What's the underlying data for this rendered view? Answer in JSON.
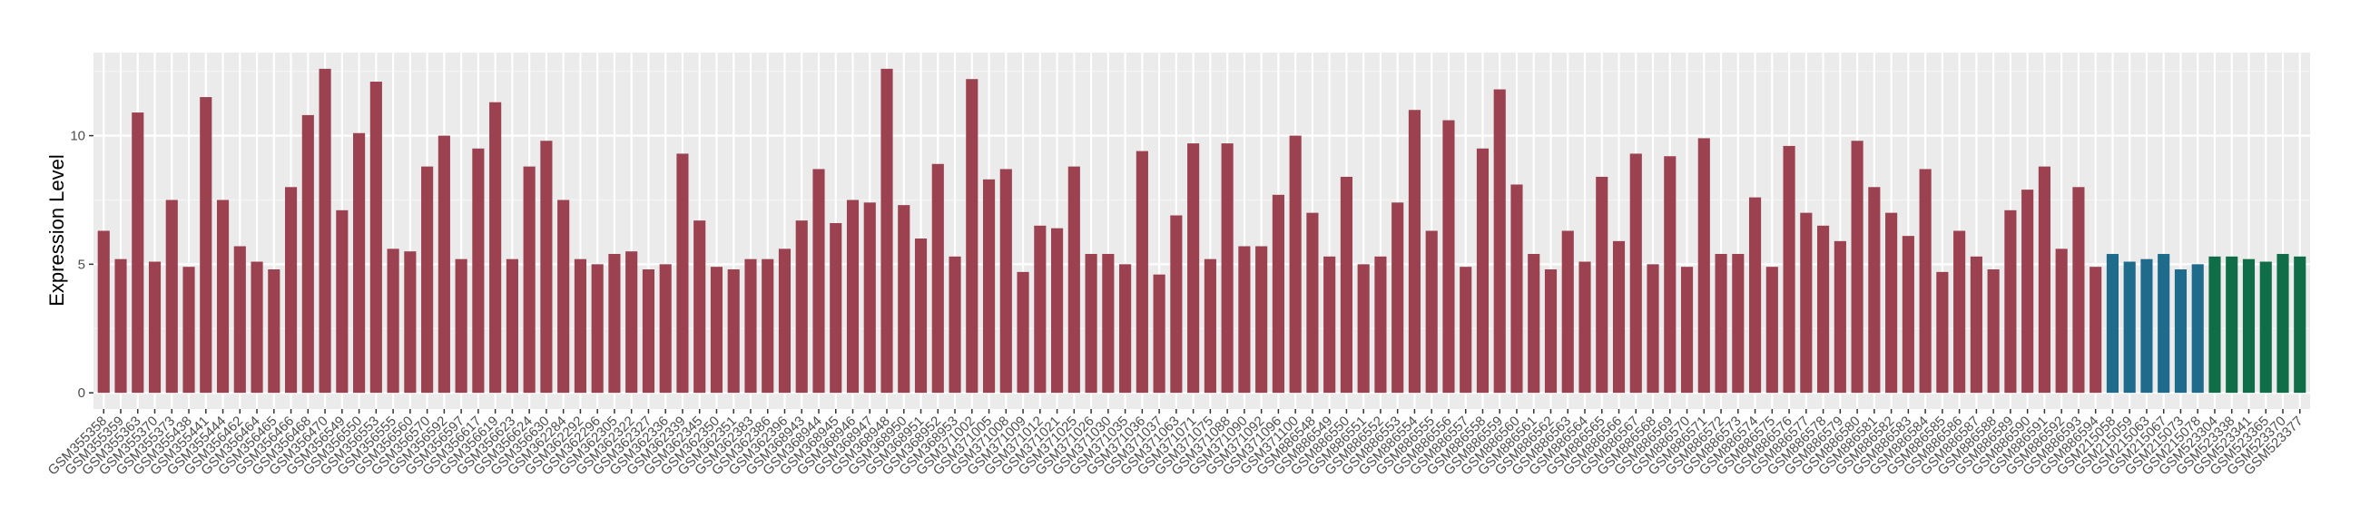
{
  "chart_data": {
    "type": "bar",
    "y_label": "Expression Level",
    "categories": [
      "GSM355358",
      "GSM355359",
      "GSM355363",
      "GSM355370",
      "GSM355373",
      "GSM355438",
      "GSM355441",
      "GSM355444",
      "GSM356462",
      "GSM356464",
      "GSM356465",
      "GSM356466",
      "GSM356468",
      "GSM356470",
      "GSM356549",
      "GSM356550",
      "GSM356553",
      "GSM356555",
      "GSM356560",
      "GSM356570",
      "GSM356592",
      "GSM356597",
      "GSM356617",
      "GSM356619",
      "GSM356623",
      "GSM356624",
      "GSM356630",
      "GSM362284",
      "GSM362292",
      "GSM362296",
      "GSM362305",
      "GSM362322",
      "GSM362327",
      "GSM362336",
      "GSM362339",
      "GSM362345",
      "GSM362350",
      "GSM362351",
      "GSM362383",
      "GSM362386",
      "GSM362396",
      "GSM368943",
      "GSM368944",
      "GSM368945",
      "GSM368946",
      "GSM368947",
      "GSM368948",
      "GSM368950",
      "GSM368951",
      "GSM368952",
      "GSM368953",
      "GSM371002",
      "GSM371005",
      "GSM371008",
      "GSM371009",
      "GSM371012",
      "GSM371021",
      "GSM371025",
      "GSM371026",
      "GSM371030",
      "GSM371035",
      "GSM371036",
      "GSM371037",
      "GSM371063",
      "GSM371071",
      "GSM371075",
      "GSM371088",
      "GSM371090",
      "GSM371092",
      "GSM371096",
      "GSM371100",
      "GSM886548",
      "GSM886549",
      "GSM886550",
      "GSM886551",
      "GSM886552",
      "GSM886553",
      "GSM886554",
      "GSM886555",
      "GSM886556",
      "GSM886557",
      "GSM886558",
      "GSM886559",
      "GSM886560",
      "GSM886561",
      "GSM886562",
      "GSM886563",
      "GSM886564",
      "GSM886565",
      "GSM886566",
      "GSM886567",
      "GSM886568",
      "GSM886569",
      "GSM886570",
      "GSM886571",
      "GSM886572",
      "GSM886573",
      "GSM886574",
      "GSM886575",
      "GSM886576",
      "GSM886577",
      "GSM886578",
      "GSM886579",
      "GSM886580",
      "GSM886581",
      "GSM886582",
      "GSM886583",
      "GSM886584",
      "GSM886585",
      "GSM886586",
      "GSM886587",
      "GSM886588",
      "GSM886589",
      "GSM886590",
      "GSM886591",
      "GSM886592",
      "GSM886593",
      "GSM886594",
      "GSM215058",
      "GSM215059",
      "GSM215063",
      "GSM215067",
      "GSM215073",
      "GSM215078",
      "GSM523304",
      "GSM523338",
      "GSM523341",
      "GSM523365",
      "GSM523370",
      "GSM523377"
    ],
    "values": [
      6.3,
      5.2,
      10.9,
      5.1,
      7.5,
      4.9,
      11.5,
      7.5,
      5.7,
      5.1,
      4.8,
      8.0,
      10.8,
      12.6,
      7.1,
      10.1,
      12.1,
      5.6,
      5.5,
      8.8,
      10.0,
      5.2,
      9.5,
      11.3,
      5.2,
      8.8,
      9.8,
      7.5,
      5.2,
      5.0,
      5.4,
      5.5,
      4.8,
      5.0,
      9.3,
      6.7,
      4.9,
      4.8,
      5.2,
      5.2,
      5.6,
      6.7,
      8.7,
      6.6,
      7.5,
      7.4,
      12.6,
      7.3,
      6.0,
      8.9,
      5.3,
      12.2,
      8.3,
      8.7,
      4.7,
      6.5,
      6.4,
      8.8,
      5.4,
      5.4,
      5.0,
      9.4,
      4.6,
      6.9,
      9.7,
      5.2,
      9.7,
      5.7,
      5.7,
      7.7,
      10.0,
      7.0,
      5.3,
      8.4,
      5.0,
      5.3,
      7.4,
      11.0,
      6.3,
      10.6,
      4.9,
      9.5,
      11.8,
      8.1,
      5.4,
      4.8,
      6.3,
      5.1,
      8.4,
      5.9,
      9.3,
      5.0,
      9.2,
      4.9,
      9.9,
      5.4,
      5.4,
      7.6,
      4.9,
      9.6,
      7.0,
      6.5,
      5.9,
      9.8,
      8.0,
      7.0,
      6.1,
      8.7,
      4.7,
      6.3,
      5.3,
      4.8,
      7.1,
      7.9,
      8.8,
      5.6,
      8.0,
      4.9,
      5.4,
      5.1,
      5.2,
      5.4,
      4.8,
      5.0,
      5.3,
      5.3,
      5.2,
      5.1,
      5.4,
      5.3
    ],
    "colors": [
      "#9b4150",
      "#9b4150",
      "#9b4150",
      "#9b4150",
      "#9b4150",
      "#9b4150",
      "#9b4150",
      "#9b4150",
      "#9b4150",
      "#9b4150",
      "#9b4150",
      "#9b4150",
      "#9b4150",
      "#9b4150",
      "#9b4150",
      "#9b4150",
      "#9b4150",
      "#9b4150",
      "#9b4150",
      "#9b4150",
      "#9b4150",
      "#9b4150",
      "#9b4150",
      "#9b4150",
      "#9b4150",
      "#9b4150",
      "#9b4150",
      "#9b4150",
      "#9b4150",
      "#9b4150",
      "#9b4150",
      "#9b4150",
      "#9b4150",
      "#9b4150",
      "#9b4150",
      "#9b4150",
      "#9b4150",
      "#9b4150",
      "#9b4150",
      "#9b4150",
      "#9b4150",
      "#9b4150",
      "#9b4150",
      "#9b4150",
      "#9b4150",
      "#9b4150",
      "#9b4150",
      "#9b4150",
      "#9b4150",
      "#9b4150",
      "#9b4150",
      "#9b4150",
      "#9b4150",
      "#9b4150",
      "#9b4150",
      "#9b4150",
      "#9b4150",
      "#9b4150",
      "#9b4150",
      "#9b4150",
      "#9b4150",
      "#9b4150",
      "#9b4150",
      "#9b4150",
      "#9b4150",
      "#9b4150",
      "#9b4150",
      "#9b4150",
      "#9b4150",
      "#9b4150",
      "#9b4150",
      "#9b4150",
      "#9b4150",
      "#9b4150",
      "#9b4150",
      "#9b4150",
      "#9b4150",
      "#9b4150",
      "#9b4150",
      "#9b4150",
      "#9b4150",
      "#9b4150",
      "#9b4150",
      "#9b4150",
      "#9b4150",
      "#9b4150",
      "#9b4150",
      "#9b4150",
      "#9b4150",
      "#9b4150",
      "#9b4150",
      "#9b4150",
      "#9b4150",
      "#9b4150",
      "#9b4150",
      "#9b4150",
      "#9b4150",
      "#9b4150",
      "#9b4150",
      "#9b4150",
      "#9b4150",
      "#9b4150",
      "#9b4150",
      "#9b4150",
      "#9b4150",
      "#9b4150",
      "#9b4150",
      "#9b4150",
      "#9b4150",
      "#9b4150",
      "#9b4150",
      "#9b4150",
      "#9b4150",
      "#9b4150",
      "#9b4150",
      "#9b4150",
      "#9b4150",
      "#9b4150",
      "#1f6b8c",
      "#1f6b8c",
      "#1f6b8c",
      "#1f6b8c",
      "#1f6b8c",
      "#1f6b8c",
      "#0f6e48",
      "#0f6e48",
      "#0f6e48",
      "#0f6e48",
      "#0f6e48",
      "#0f6e48"
    ],
    "ylim": [
      -0.63,
      13.23
    ],
    "yticks": [
      0,
      5,
      10
    ],
    "minor_yticks": [
      2.5,
      7.5,
      12.5
    ],
    "grid": true
  }
}
